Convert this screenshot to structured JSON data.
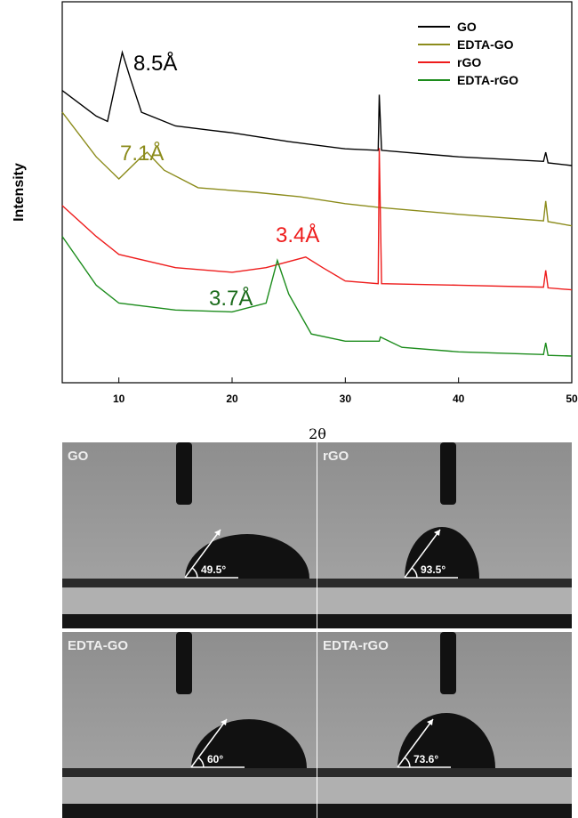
{
  "chart_data": {
    "type": "line",
    "xlabel": "2θ",
    "ylabel": "Intensity",
    "xlim": [
      5,
      50
    ],
    "xticks": [
      10,
      20,
      30,
      40,
      50
    ],
    "ylim": [
      0,
      100
    ],
    "legend": "top-right",
    "series": [
      {
        "name": "GO",
        "color": "#000000",
        "x": [
          5,
          8,
          9,
          10,
          10.3,
          11,
          12,
          15,
          18,
          20,
          25,
          30,
          32.9,
          33,
          33.2,
          40,
          47.5,
          47.7,
          47.9,
          50
        ],
        "values": [
          76.7,
          70,
          68.6,
          82.6,
          86.7,
          80,
          71,
          67.4,
          66.3,
          65.6,
          63.3,
          61.4,
          61,
          75.6,
          61,
          59.3,
          58.1,
          60.5,
          57.7,
          57
        ]
      },
      {
        "name": "EDTA-GO",
        "color": "#8c8c1c",
        "x": [
          5,
          8,
          10,
          12,
          12.5,
          14,
          17,
          22,
          26,
          30,
          33,
          40,
          47.5,
          47.7,
          47.9,
          50
        ],
        "values": [
          71,
          59.3,
          53.5,
          59.3,
          60.5,
          55.8,
          51.2,
          50,
          48.8,
          47,
          46,
          44.2,
          42.5,
          47.7,
          42.3,
          41.2
        ]
      },
      {
        "name": "rGO",
        "color": "#ee1c1c",
        "x": [
          5,
          8,
          10,
          15,
          20,
          23,
          26.5,
          28,
          30,
          32.9,
          33,
          33.2,
          40,
          47.5,
          47.7,
          47.9,
          50
        ],
        "values": [
          46.5,
          38.4,
          33.7,
          30.2,
          29,
          30.2,
          33,
          30.2,
          26.7,
          26,
          61.6,
          26,
          25.6,
          25.1,
          29.5,
          24.9,
          24.4
        ]
      },
      {
        "name": "EDTA-rGO",
        "color": "#1c8c1c",
        "x": [
          5,
          8,
          10,
          15,
          20,
          23,
          24,
          25,
          27,
          30,
          33,
          33.1,
          35,
          40,
          47.5,
          47.7,
          47.9,
          50
        ],
        "values": [
          38.4,
          25.6,
          20.9,
          19.1,
          18.6,
          20.9,
          32.1,
          23.3,
          12.8,
          10.9,
          10.9,
          12,
          9.3,
          8.1,
          7.4,
          10.5,
          7.2,
          7
        ]
      }
    ],
    "annotations": [
      {
        "text": "8.5Å",
        "color": "#000000"
      },
      {
        "text": "7.1Å",
        "color": "#8c8c1c"
      },
      {
        "text": "3.4Å",
        "color": "#ee1c1c"
      },
      {
        "text": "3.7Å",
        "color": "#1c6c1c"
      }
    ]
  },
  "photos": [
    {
      "label": "GO",
      "angle": "49.5°"
    },
    {
      "label": "rGO",
      "angle": "93.5°"
    },
    {
      "label": "EDTA-GO",
      "angle": "60°"
    },
    {
      "label": "EDTA-rGO",
      "angle": "73.6°"
    }
  ]
}
